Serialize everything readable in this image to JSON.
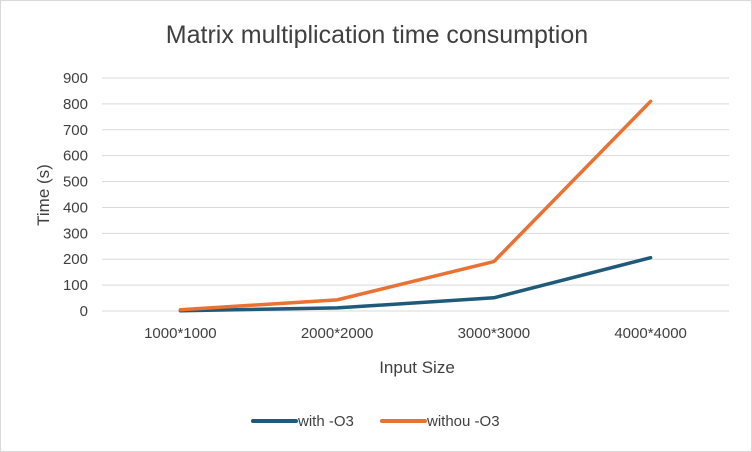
{
  "chart_data": {
    "type": "line",
    "title": "Matrix multiplication time consumption",
    "xlabel": "Input Size",
    "ylabel": "Time (s)",
    "categories": [
      "1000*1000",
      "2000*2000",
      "3000*3000",
      "4000*4000"
    ],
    "ylim": [
      0,
      900
    ],
    "yticks": [
      0,
      100,
      200,
      300,
      400,
      500,
      600,
      700,
      800,
      900
    ],
    "grid": true,
    "legend_position": "bottom",
    "series": [
      {
        "name": "with -O3",
        "color": "#1f5a7a",
        "values": [
          1,
          12,
          51,
          206
        ]
      },
      {
        "name": "withou -O3",
        "color": "#e97132",
        "values": [
          5,
          43,
          191,
          810
        ]
      }
    ]
  }
}
